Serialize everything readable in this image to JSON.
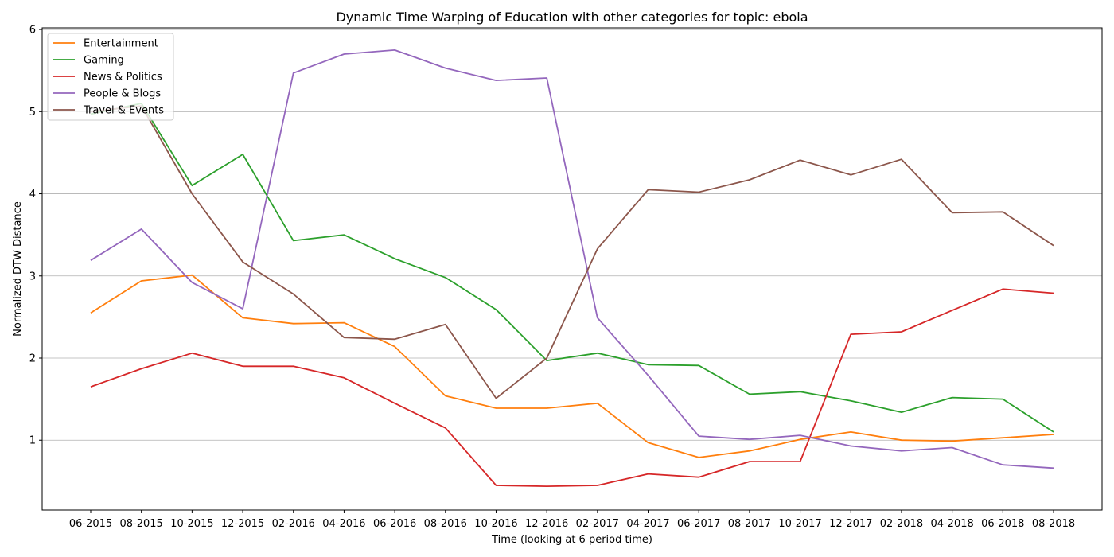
{
  "chart_data": {
    "type": "line",
    "title": "Dynamic Time Warping of Education with other categories for topic: ebola",
    "xlabel": "Time (looking at 6 period time)",
    "ylabel": "Normalized DTW Distance",
    "ylim": [
      0.15,
      6.02
    ],
    "yticks": [
      "1",
      "2",
      "3",
      "4",
      "5",
      "6"
    ],
    "grid": "horizontal",
    "legend_position": "top-left",
    "categories": [
      "06-2015",
      "08-2015",
      "10-2015",
      "12-2015",
      "02-2016",
      "04-2016",
      "06-2016",
      "08-2016",
      "10-2016",
      "12-2016",
      "02-2017",
      "04-2017",
      "06-2017",
      "08-2017",
      "10-2017",
      "12-2017",
      "02-2018",
      "04-2018",
      "06-2018",
      "08-2018"
    ],
    "series": [
      {
        "name": "Entertainment",
        "color": "#ff7f0e",
        "values": [
          2.55,
          2.94,
          3.01,
          2.49,
          2.42,
          2.43,
          2.14,
          1.54,
          1.39,
          1.39,
          1.45,
          0.97,
          0.79,
          0.87,
          1.01,
          1.1,
          1.0,
          0.99,
          1.03,
          1.07
        ]
      },
      {
        "name": "Gaming",
        "color": "#2ca02c",
        "values": [
          4.97,
          5.1,
          4.1,
          4.48,
          3.43,
          3.5,
          3.21,
          2.98,
          2.59,
          1.97,
          2.06,
          1.92,
          1.91,
          1.56,
          1.59,
          1.48,
          1.34,
          1.52,
          1.5,
          1.1
        ]
      },
      {
        "name": "News & Politics",
        "color": "#d62728",
        "values": [
          1.65,
          1.87,
          2.06,
          1.9,
          1.9,
          1.76,
          1.45,
          1.15,
          0.45,
          0.44,
          0.45,
          0.59,
          0.55,
          0.74,
          0.74,
          2.29,
          2.32,
          2.58,
          2.84,
          2.79
        ]
      },
      {
        "name": "People & Blogs",
        "color": "#9467bd",
        "values": [
          3.19,
          3.57,
          2.92,
          2.6,
          5.47,
          5.7,
          5.75,
          5.53,
          5.38,
          5.41,
          2.49,
          1.79,
          1.05,
          1.01,
          1.06,
          0.93,
          0.87,
          0.91,
          0.7,
          0.66
        ]
      },
      {
        "name": "Travel & Events",
        "color": "#8c564b",
        "values": [
          5.0,
          5.07,
          4.0,
          3.17,
          2.78,
          2.25,
          2.23,
          2.41,
          1.51,
          2.0,
          3.33,
          4.05,
          4.02,
          4.17,
          4.41,
          4.23,
          4.42,
          3.77,
          3.78,
          3.37
        ]
      }
    ]
  }
}
